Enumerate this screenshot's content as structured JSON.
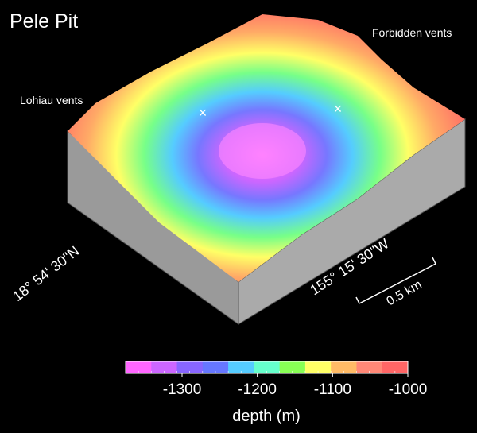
{
  "title": "Pele Pit",
  "annotations": {
    "forbidden": "Forbidden vents",
    "lohiau": "Lohiau vents"
  },
  "coordinates": {
    "latitude": "18° 54' 30\"N",
    "longitude": "155° 15' 30\"W"
  },
  "scale_bar": "0.5 km",
  "colorbar": {
    "label": "depth (m)",
    "lim": [
      -1375,
      -1000
    ],
    "ticks": [
      -1300,
      -1200,
      -1100,
      -1000
    ],
    "colors": [
      "#ff66ff",
      "#cc66ff",
      "#8866ff",
      "#6677ff",
      "#55ccff",
      "#66ffcc",
      "#88ff55",
      "#ffff66",
      "#ffbb66",
      "#ff8877",
      "#ff6666"
    ]
  }
}
